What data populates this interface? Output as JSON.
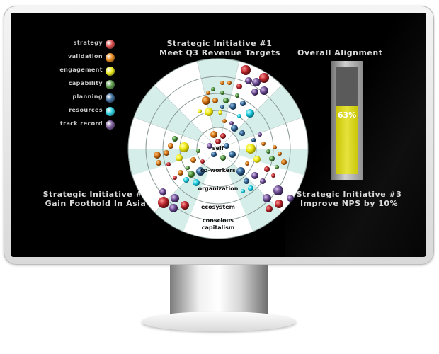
{
  "legend": [
    {
      "label": "strategy",
      "color": "#d94a4a"
    },
    {
      "label": "validation",
      "color": "#e88a1a"
    },
    {
      "label": "engagement",
      "color": "#e8e81a"
    },
    {
      "label": "capability",
      "color": "#5a9a4a"
    },
    {
      "label": "planning",
      "color": "#3a6a9a"
    },
    {
      "label": "resources",
      "color": "#2ad0e0"
    },
    {
      "label": "track record",
      "color": "#7a5a9a"
    }
  ],
  "initiatives": {
    "one": {
      "line1": "Strategic Initiative #1",
      "line2": "Meet Q3 Revenue Targets"
    },
    "two": {
      "line1": "Strategic Initiative #2",
      "line2": "Gain Foothold In Asia"
    },
    "three": {
      "line1": "Strategic Initiative #3",
      "line2": "Improve NPS by 10%"
    }
  },
  "gauge": {
    "title": "Overall Alignment",
    "value": 0.63,
    "label": "63%",
    "fill_color": "#c8c400"
  },
  "rings": [
    "self",
    "co-workers",
    "organization",
    "ecosystem",
    "conscious capitalism"
  ],
  "ring_conscious_lines": [
    "conscious",
    "capitalism"
  ]
}
